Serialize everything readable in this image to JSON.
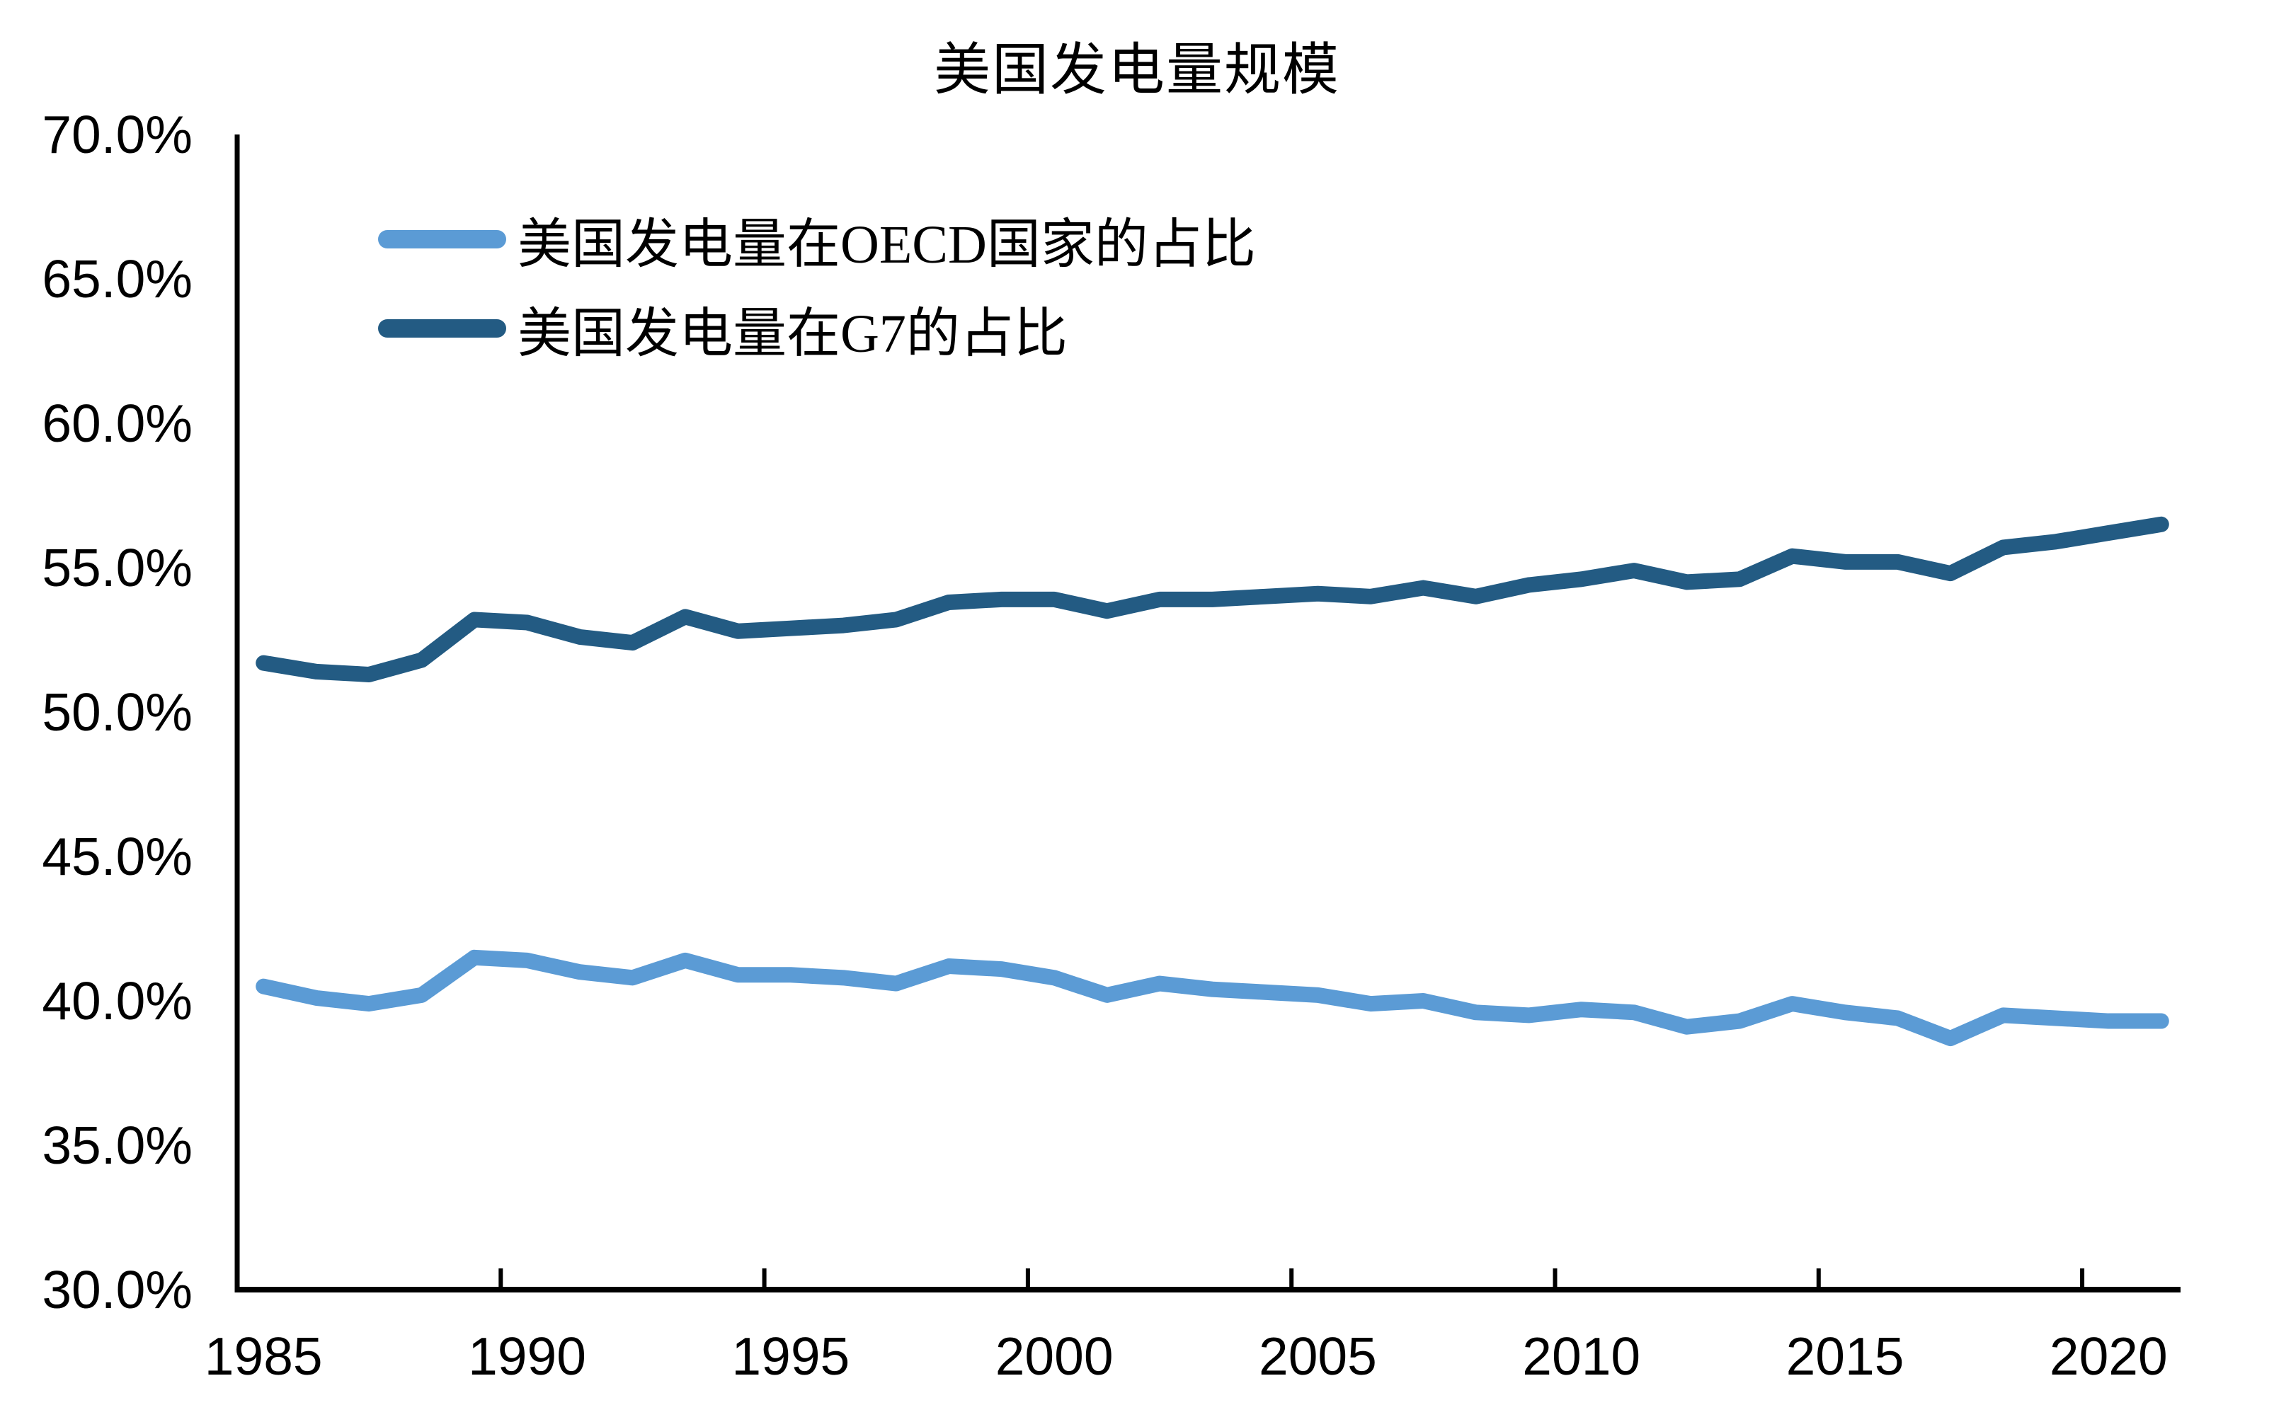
{
  "chart_data": {
    "type": "line",
    "title": "美国发电量规模",
    "grid": false,
    "legend_position": "top-left",
    "x": [
      1985,
      1986,
      1987,
      1988,
      1989,
      1990,
      1991,
      1992,
      1993,
      1994,
      1995,
      1996,
      1997,
      1998,
      1999,
      2000,
      2001,
      2002,
      2003,
      2004,
      2005,
      2006,
      2007,
      2008,
      2009,
      2010,
      2011,
      2012,
      2013,
      2014,
      2015,
      2016,
      2017,
      2018,
      2019,
      2020,
      2021
    ],
    "series": [
      {
        "name": "美国发电量在OECD国家的占比",
        "color": "#5B9BD5",
        "values": [
          40.5,
          40.1,
          39.9,
          40.2,
          41.5,
          41.4,
          41.0,
          40.8,
          41.4,
          40.9,
          40.9,
          40.8,
          40.6,
          41.2,
          41.1,
          40.8,
          40.2,
          40.6,
          40.4,
          40.3,
          40.2,
          39.9,
          40.0,
          39.6,
          39.5,
          39.7,
          39.6,
          39.1,
          39.3,
          39.9,
          39.6,
          39.4,
          38.7,
          39.5,
          39.4,
          39.3,
          39.3
        ]
      },
      {
        "name": "美国发电量在G7的占比",
        "color": "#235B83",
        "values": [
          51.7,
          51.4,
          51.3,
          51.8,
          53.2,
          53.1,
          52.6,
          52.4,
          53.3,
          52.8,
          52.9,
          53.0,
          53.2,
          53.8,
          53.9,
          53.9,
          53.5,
          53.9,
          53.9,
          54.0,
          54.1,
          54.0,
          54.3,
          54.0,
          54.4,
          54.6,
          54.9,
          54.5,
          54.6,
          55.4,
          55.2,
          55.2,
          54.8,
          55.7,
          55.9,
          56.2,
          56.5
        ]
      }
    ],
    "y_axis": {
      "min": 30,
      "max": 70,
      "unit": "%",
      "ticks": [
        {
          "label": "70.0%",
          "value": 70
        },
        {
          "label": "65.0%",
          "value": 65
        },
        {
          "label": "60.0%",
          "value": 60
        },
        {
          "label": "55.0%",
          "value": 55
        },
        {
          "label": "50.0%",
          "value": 50
        },
        {
          "label": "45.0%",
          "value": 45
        },
        {
          "label": "40.0%",
          "value": 40
        },
        {
          "label": "35.0%",
          "value": 35
        },
        {
          "label": "30.0%",
          "value": 30
        }
      ]
    },
    "x_axis": {
      "ticks": [
        {
          "label": "1985",
          "year": 1985
        },
        {
          "label": "1990",
          "year": 1990
        },
        {
          "label": "1995",
          "year": 1995
        },
        {
          "label": "2000",
          "year": 2000
        },
        {
          "label": "2005",
          "year": 2005
        },
        {
          "label": "2010",
          "year": 2010
        },
        {
          "label": "2015",
          "year": 2015
        },
        {
          "label": "2020",
          "year": 2020
        }
      ]
    }
  }
}
